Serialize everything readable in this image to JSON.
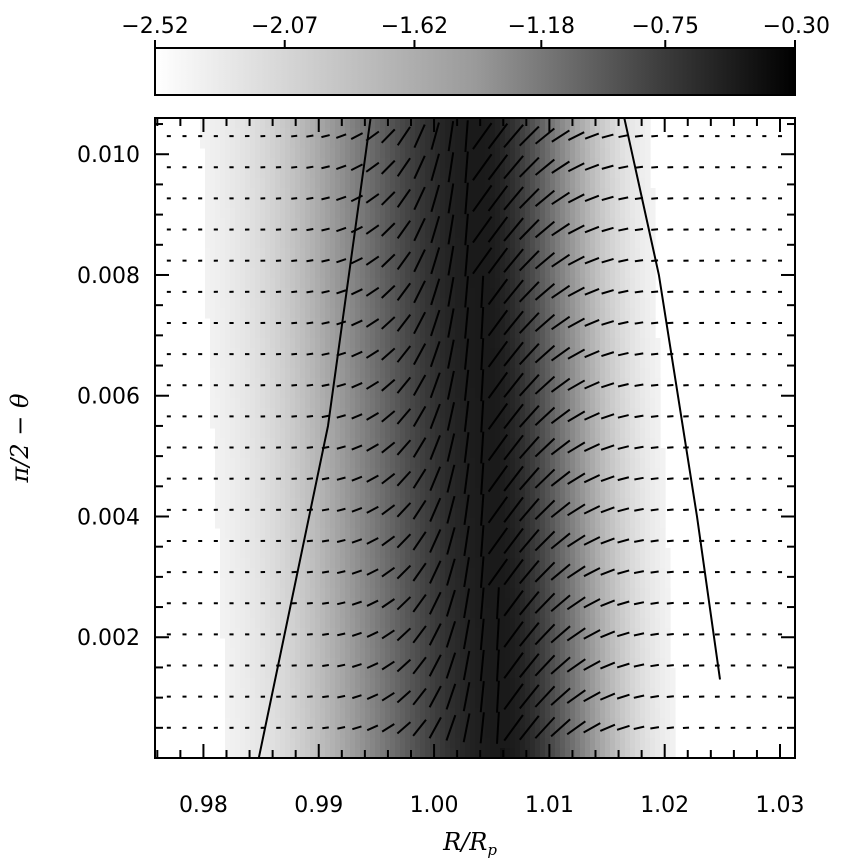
{
  "chart_data": {
    "type": "heatmap",
    "xlabel": "R/R_p",
    "ylabel": "π/2 − θ",
    "x_ticks": [
      "0.98",
      "0.99",
      "1.00",
      "1.01",
      "1.02",
      "1.03"
    ],
    "x_tick_values": [
      0.98,
      0.99,
      1.0,
      1.01,
      1.02,
      1.03
    ],
    "y_ticks": [
      "0.002",
      "0.004",
      "0.006",
      "0.008",
      "0.010"
    ],
    "y_tick_values": [
      0.002,
      0.004,
      0.006,
      0.008,
      0.01
    ],
    "xlim": [
      0.9758,
      1.0313
    ],
    "ylim": [
      0.0,
      0.0106
    ],
    "colorbar": {
      "ticks": [
        "−2.52",
        "−2.07",
        "−1.62",
        "−1.18",
        "−0.75",
        "−0.30"
      ],
      "tick_values": [
        -2.52,
        -2.07,
        -1.62,
        -1.18,
        -0.75,
        -0.3
      ],
      "range": [
        -2.52,
        -0.3
      ],
      "colormap": "white-to-black",
      "placement": "top"
    },
    "heat_ridge": {
      "description_center_x": [
        1.006,
        1.0057,
        1.0052,
        1.0047,
        1.0042,
        1.0039
      ],
      "center_y": [
        0.0,
        0.002,
        0.004,
        0.006,
        0.008,
        0.0106
      ],
      "peak_value": -0.3
    },
    "contours": [
      {
        "name": "",
        "points": [
          [
            0.9848,
            0.0
          ],
          [
            0.9908,
            0.0055
          ],
          [
            0.9945,
            0.0106
          ]
        ]
      },
      {
        "name": "",
        "points": [
          [
            1.0248,
            0.0013
          ],
          [
            1.0228,
            0.004
          ],
          [
            1.0195,
            0.008
          ],
          [
            1.0165,
            0.0106
          ]
        ]
      }
    ],
    "vector_field": {
      "x_range": [
        0.977,
        1.03
      ],
      "y_range": [
        0.0005,
        0.0103
      ],
      "columns": 40,
      "rows": 20
    },
    "grid": false
  }
}
